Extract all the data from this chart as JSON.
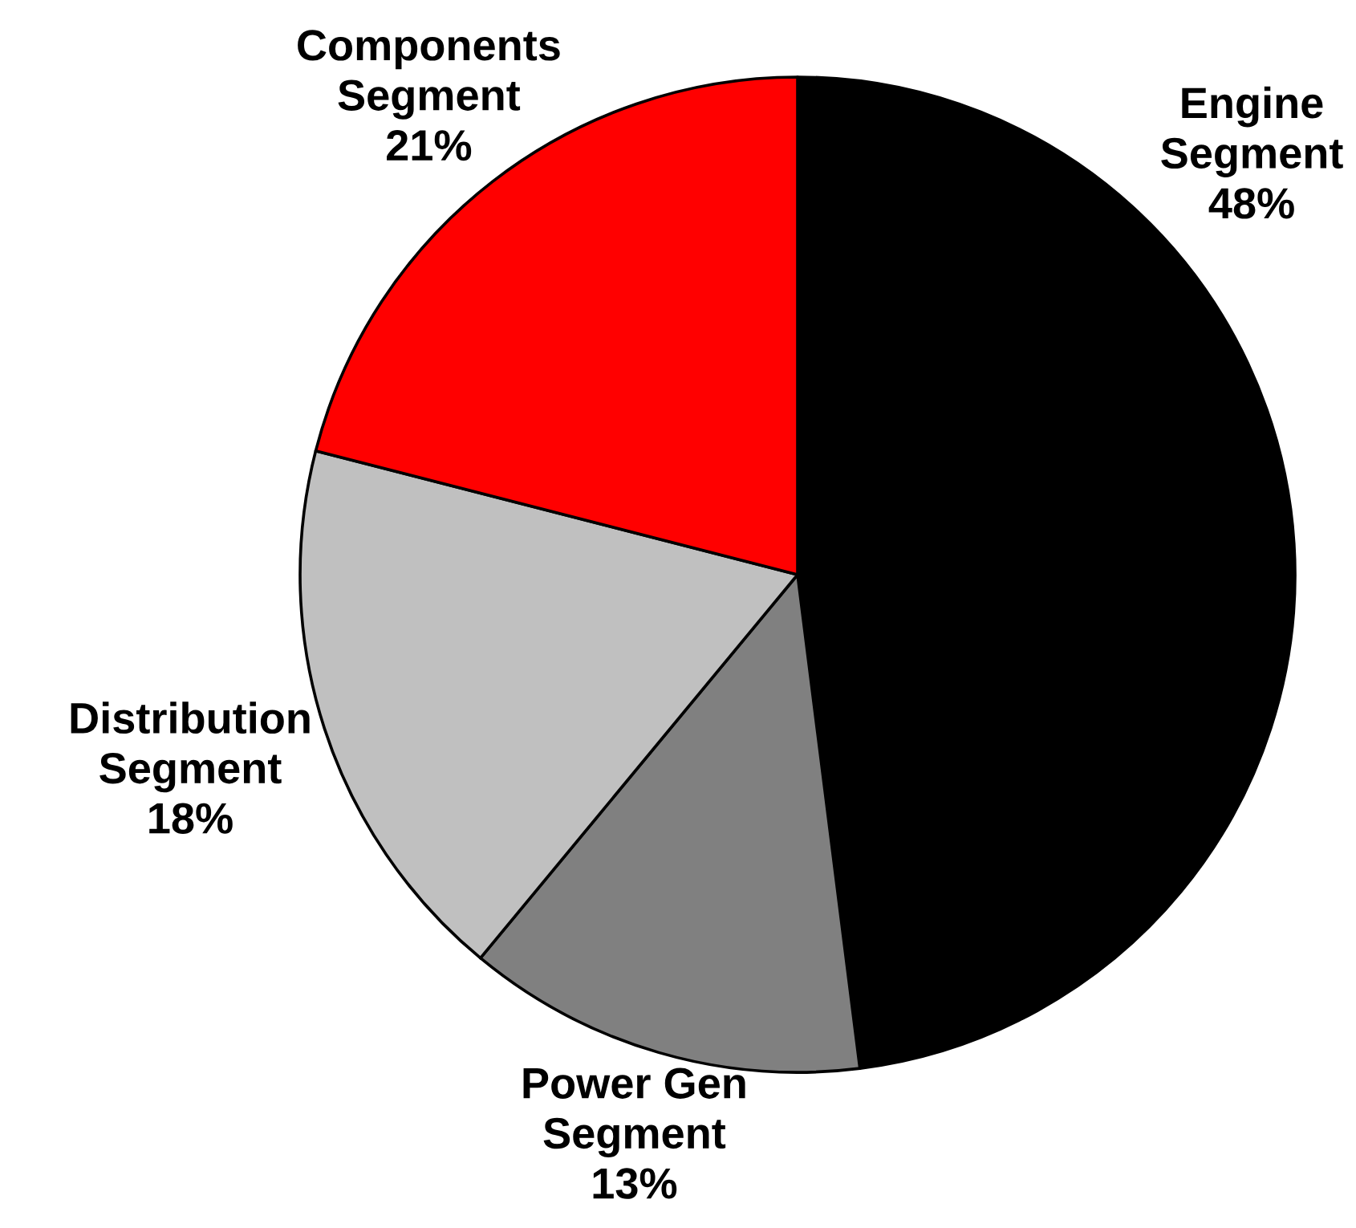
{
  "chart_data": {
    "type": "pie",
    "categories": [
      "Engine Segment",
      "Power Gen Segment",
      "Distribution Segment",
      "Components Segment"
    ],
    "values": [
      48,
      13,
      18,
      21
    ],
    "colors": [
      "#000000",
      "#808080",
      "#c0c0c0",
      "#ff0000"
    ],
    "value_labels": [
      "48%",
      "13%",
      "18%",
      "21%"
    ]
  }
}
